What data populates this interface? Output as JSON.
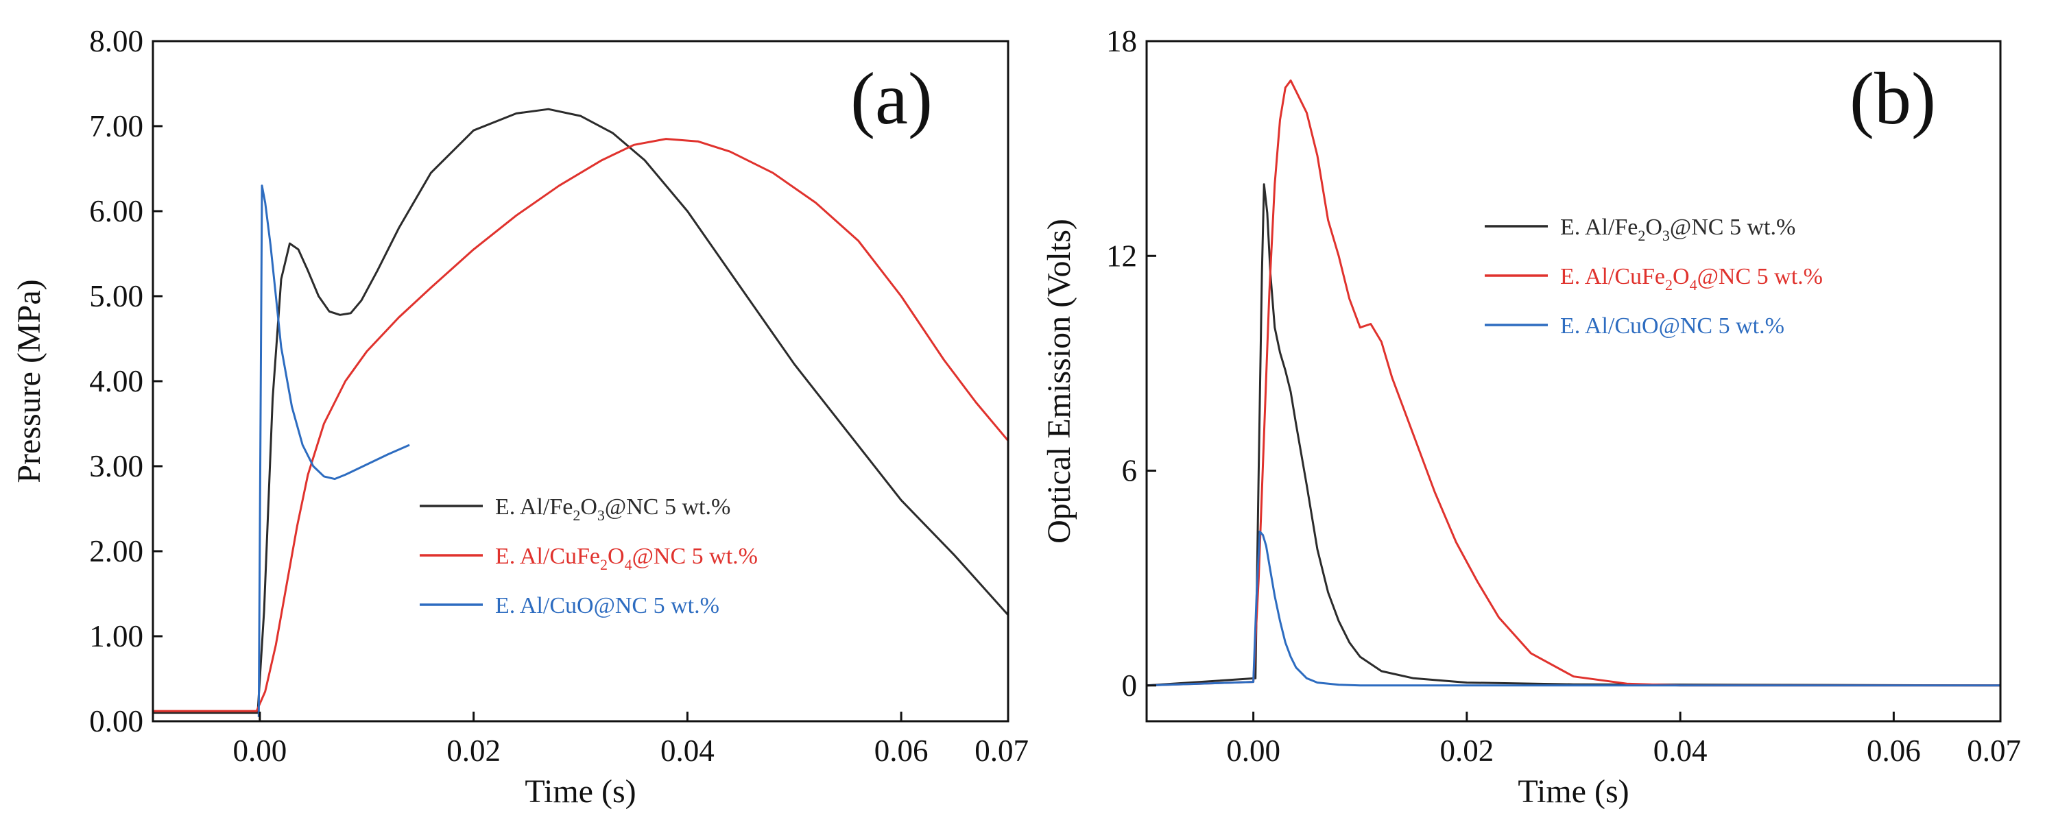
{
  "chart_data": [
    {
      "type": "line",
      "panel_label": "(a)",
      "xlabel": "Time (s)",
      "ylabel": "Pressure (MPa)",
      "xlim": [
        -0.01,
        0.07
      ],
      "ylim": [
        0,
        8
      ],
      "xticks": [
        0.0,
        0.02,
        0.04,
        0.06,
        0.07
      ],
      "xtick_labels": [
        "0.00",
        "0.02",
        "0.04",
        "0.06",
        "0.07"
      ],
      "yticks": [
        0,
        1,
        2,
        3,
        4,
        5,
        6,
        7,
        8
      ],
      "ytick_labels": [
        "0.00",
        "1.00",
        "2.00",
        "3.00",
        "4.00",
        "5.00",
        "6.00",
        "7.00",
        "8.00"
      ],
      "legend_position": "lower-center",
      "series": [
        {
          "name": "E. Al/Fe2O3@NC 5 wt.%",
          "legend": {
            "pre": "E. Al/Fe",
            "s1": "2",
            "mid": "O",
            "s2": "3",
            "post": "@NC 5 wt.%"
          },
          "color": "#2b2b2b",
          "x": [
            -0.01,
            -0.005,
            -0.0002,
            0.0004,
            0.0012,
            0.002,
            0.0028,
            0.0036,
            0.0045,
            0.0055,
            0.0065,
            0.0075,
            0.0085,
            0.0095,
            0.011,
            0.013,
            0.016,
            0.02,
            0.024,
            0.027,
            0.03,
            0.033,
            0.036,
            0.04,
            0.045,
            0.05,
            0.055,
            0.06,
            0.065,
            0.07
          ],
          "y": [
            0.1,
            0.1,
            0.1,
            1.3,
            3.8,
            5.2,
            5.62,
            5.55,
            5.3,
            5.0,
            4.82,
            4.78,
            4.8,
            4.95,
            5.3,
            5.8,
            6.45,
            6.95,
            7.15,
            7.2,
            7.12,
            6.92,
            6.6,
            6.0,
            5.1,
            4.2,
            3.4,
            2.6,
            1.95,
            1.25
          ]
        },
        {
          "name": "E. Al/CuFe2O4@NC 5 wt.%",
          "legend": {
            "pre": "E. Al/CuFe",
            "s1": "2",
            "mid": "O",
            "s2": "4",
            "post": "@NC 5 wt.%"
          },
          "color": "#e0322d",
          "x": [
            -0.01,
            -0.005,
            -0.0003,
            0.0005,
            0.0015,
            0.0025,
            0.0035,
            0.0045,
            0.006,
            0.008,
            0.01,
            0.013,
            0.016,
            0.02,
            0.024,
            0.028,
            0.032,
            0.035,
            0.038,
            0.041,
            0.044,
            0.048,
            0.052,
            0.056,
            0.06,
            0.064,
            0.067,
            0.07
          ],
          "y": [
            0.12,
            0.12,
            0.12,
            0.35,
            0.9,
            1.6,
            2.3,
            2.9,
            3.5,
            4.0,
            4.35,
            4.75,
            5.1,
            5.55,
            5.95,
            6.3,
            6.6,
            6.78,
            6.85,
            6.82,
            6.7,
            6.45,
            6.1,
            5.65,
            5.0,
            4.25,
            3.75,
            3.3
          ]
        },
        {
          "name": "E. Al/CuO@NC 5 wt.%",
          "legend": {
            "pre": "E. Al/CuO@NC 5 wt.%",
            "s1": "",
            "mid": "",
            "s2": "",
            "post": ""
          },
          "color": "#2d6cc0",
          "x": [
            -0.0001,
            0.0002,
            0.0005,
            0.001,
            0.0015,
            0.002,
            0.003,
            0.004,
            0.005,
            0.006,
            0.007,
            0.008,
            0.01,
            0.012,
            0.014
          ],
          "y": [
            0.05,
            6.3,
            6.1,
            5.6,
            5.0,
            4.4,
            3.7,
            3.25,
            3.0,
            2.88,
            2.85,
            2.9,
            3.02,
            3.14,
            3.25
          ]
        }
      ]
    },
    {
      "type": "line",
      "panel_label": "(b)",
      "xlabel": "Time (s)",
      "ylabel": "Optical Emission (Volts)",
      "xlim": [
        -0.01,
        0.07
      ],
      "ylim": [
        -1,
        18
      ],
      "xticks": [
        0.0,
        0.02,
        0.04,
        0.06,
        0.07
      ],
      "xtick_labels": [
        "0.00",
        "0.02",
        "0.04",
        "0.06",
        "0.07"
      ],
      "yticks": [
        0,
        6,
        12,
        18
      ],
      "ytick_labels": [
        "0",
        "6",
        "12",
        "18"
      ],
      "legend_position": "upper-center",
      "series": [
        {
          "name": "E. Al/Fe2O3@NC 5 wt.%",
          "legend": {
            "pre": "E. Al/Fe",
            "s1": "2",
            "mid": "O",
            "s2": "3",
            "post": "@NC 5 wt.%"
          },
          "color": "#2b2b2b",
          "x": [
            -0.01,
            0.0002,
            0.0005,
            0.0008,
            0.001,
            0.0013,
            0.0016,
            0.002,
            0.0025,
            0.003,
            0.0035,
            0.004,
            0.005,
            0.006,
            0.007,
            0.008,
            0.009,
            0.01,
            0.012,
            0.015,
            0.02,
            0.03,
            0.07
          ],
          "y": [
            0,
            0.2,
            6.0,
            11.5,
            14.0,
            13.2,
            11.5,
            10.0,
            9.3,
            8.8,
            8.2,
            7.3,
            5.6,
            3.8,
            2.6,
            1.8,
            1.2,
            0.8,
            0.4,
            0.2,
            0.08,
            0.03,
            0
          ]
        },
        {
          "name": "E. Al/CuFe2O4@NC 5 wt.%",
          "legend": {
            "pre": "E. Al/CuFe",
            "s1": "2",
            "mid": "O",
            "s2": "4",
            "post": "@NC 5 wt.%"
          },
          "color": "#e0322d",
          "x": [
            -0.01,
            0.0,
            0.0005,
            0.001,
            0.0015,
            0.002,
            0.0025,
            0.003,
            0.0035,
            0.004,
            0.005,
            0.006,
            0.007,
            0.008,
            0.009,
            0.01,
            0.011,
            0.012,
            0.013,
            0.014,
            0.015,
            0.017,
            0.019,
            0.021,
            0.023,
            0.026,
            0.03,
            0.035,
            0.04,
            0.07
          ],
          "y": [
            0,
            0.1,
            3.0,
            7.0,
            11.0,
            14.0,
            15.8,
            16.7,
            16.9,
            16.6,
            16.0,
            14.8,
            13.0,
            12.0,
            10.8,
            10.0,
            10.1,
            9.6,
            8.6,
            7.8,
            7.0,
            5.4,
            4.0,
            2.9,
            1.9,
            0.9,
            0.25,
            0.05,
            0,
            0
          ]
        },
        {
          "name": "E. Al/CuO@NC 5 wt.%",
          "legend": {
            "pre": "E. Al/CuO@NC 5 wt.%",
            "s1": "",
            "mid": "",
            "s2": "",
            "post": ""
          },
          "color": "#2d6cc0",
          "x": [
            -0.01,
            0.0,
            0.0003,
            0.0006,
            0.0009,
            0.0012,
            0.0016,
            0.002,
            0.0025,
            0.003,
            0.0035,
            0.004,
            0.005,
            0.006,
            0.008,
            0.01,
            0.07
          ],
          "y": [
            0,
            0.1,
            2.5,
            4.3,
            4.2,
            3.9,
            3.2,
            2.5,
            1.8,
            1.2,
            0.8,
            0.5,
            0.2,
            0.08,
            0.02,
            0,
            0
          ]
        }
      ]
    }
  ]
}
